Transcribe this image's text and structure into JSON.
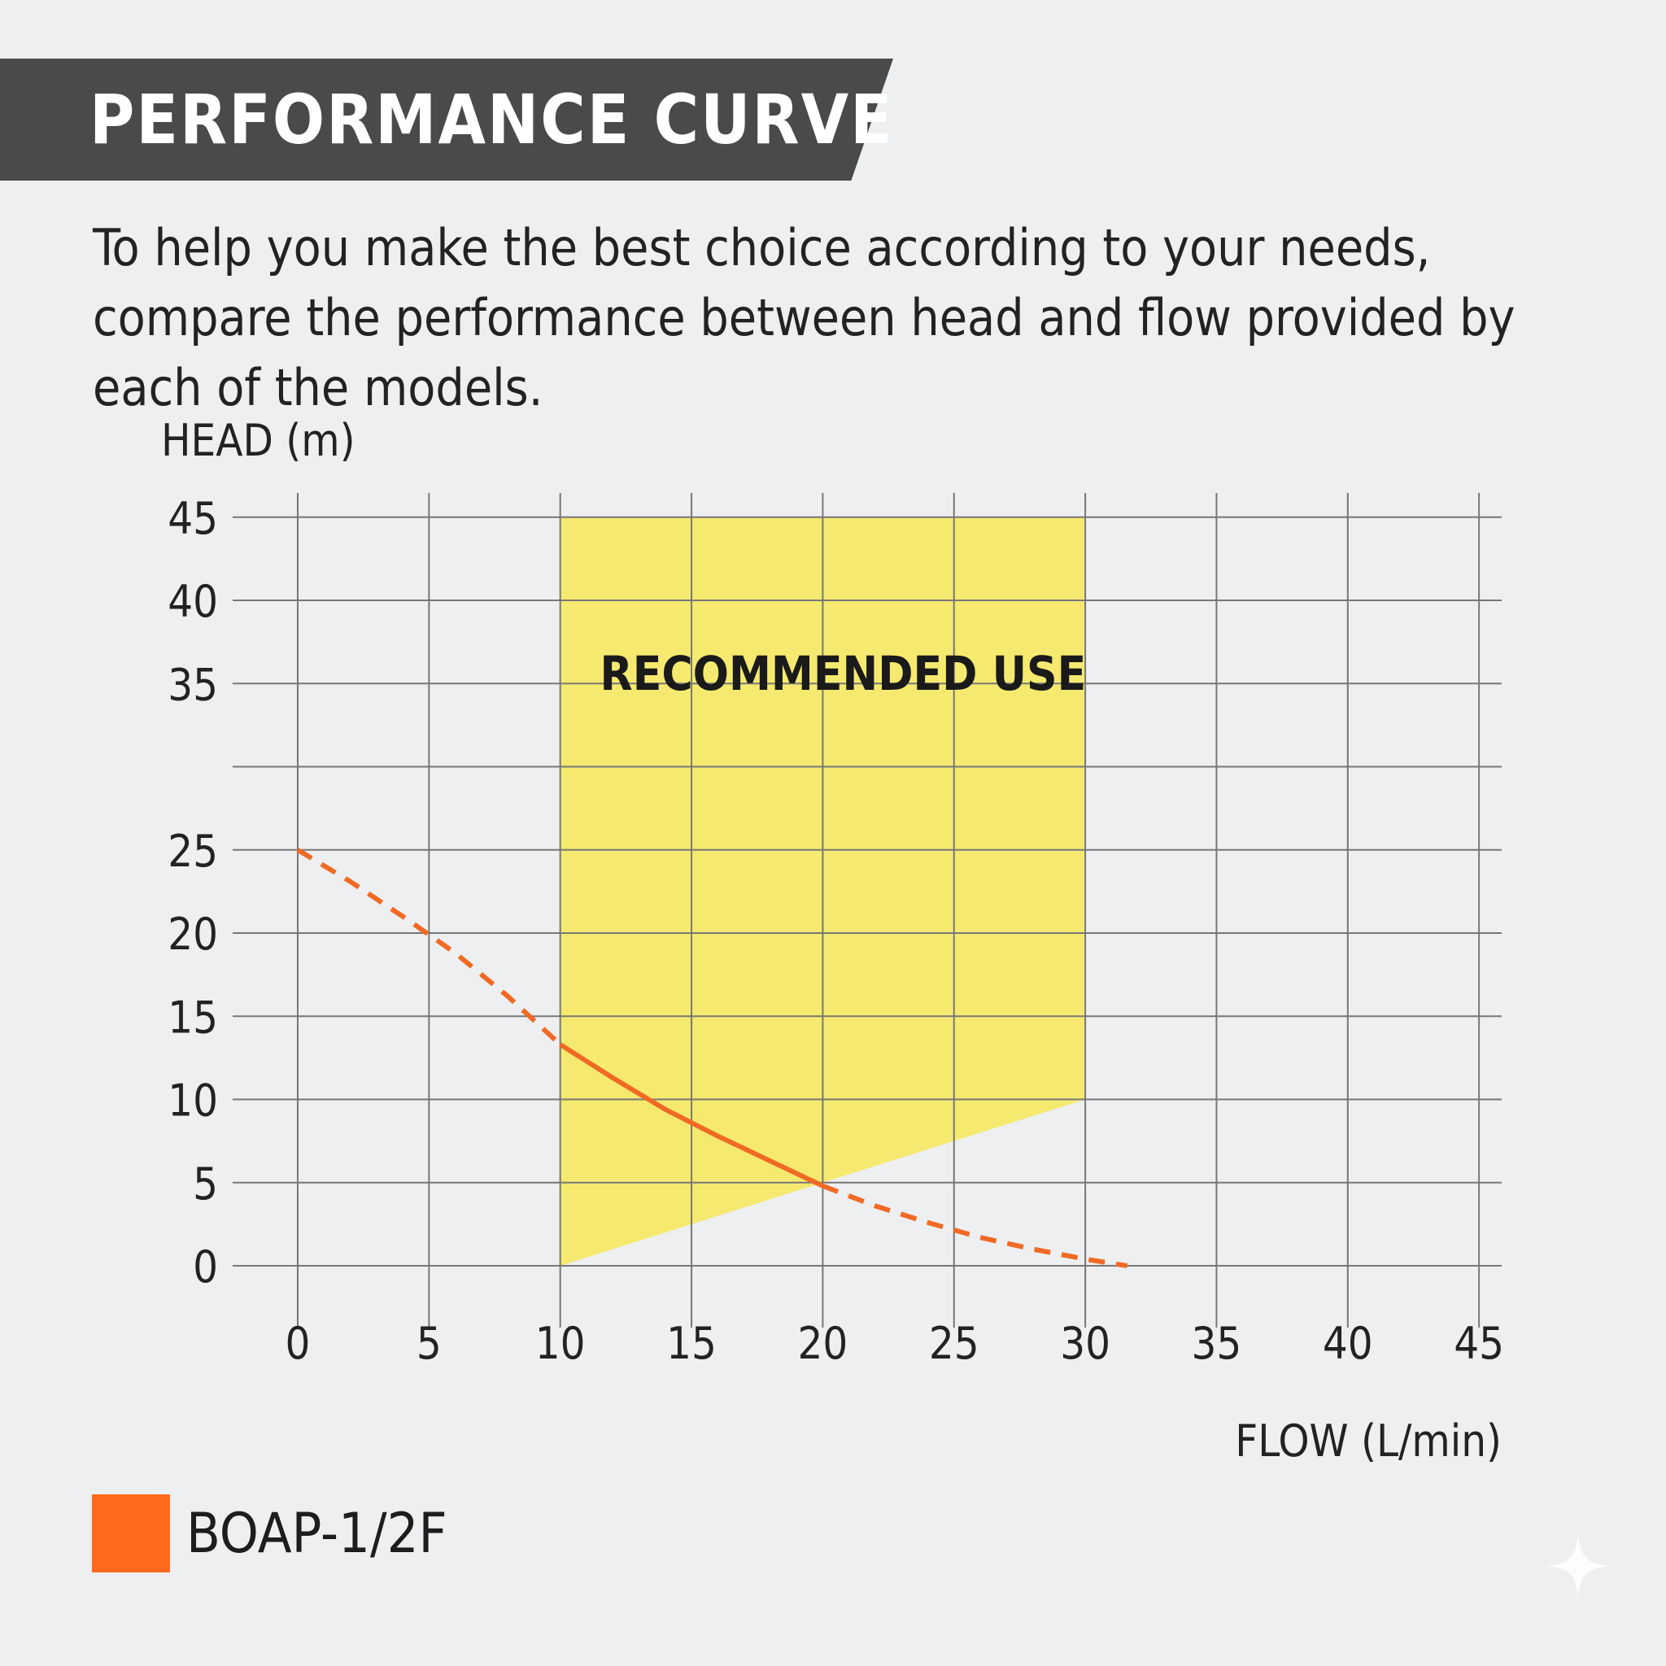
{
  "header": {
    "title": "PERFORMANCE CURVE"
  },
  "intro_text": "To help you make the best choice according to your needs, compare the performance between head and flow provided by each of the models.",
  "legend": [
    {
      "label": "BOAP-1/2F",
      "color": "#ff6a1f"
    }
  ],
  "colors": {
    "grid": "#777777",
    "recommended_fill": "#f5ea6f",
    "curve": "#f06a24"
  },
  "chart_data": {
    "type": "line",
    "xlabel": "FLOW (L/min)",
    "ylabel": "HEAD (m)",
    "xlim": [
      0,
      45
    ],
    "ylim": [
      0,
      45
    ],
    "x_ticks": [
      0,
      5,
      10,
      15,
      20,
      25,
      30,
      35,
      40,
      45
    ],
    "y_gridlines": [
      0,
      5,
      10,
      15,
      20,
      25,
      30,
      35,
      40,
      45
    ],
    "y_tick_labels": [
      {
        "value": 0,
        "label": "0"
      },
      {
        "value": 5,
        "label": "5"
      },
      {
        "value": 10,
        "label": "10"
      },
      {
        "value": 15,
        "label": "15"
      },
      {
        "value": 20,
        "label": "20"
      },
      {
        "value": 25,
        "label": "25"
      },
      {
        "value": 35,
        "label": "35"
      },
      {
        "value": 40,
        "label": "40"
      },
      {
        "value": 45,
        "label": "45"
      }
    ],
    "grid": true,
    "recommended_region": {
      "label": "RECOMMENDED USE",
      "polygon": [
        [
          10,
          0
        ],
        [
          10,
          45
        ],
        [
          30,
          45
        ],
        [
          30,
          10
        ]
      ]
    },
    "series": [
      {
        "name": "BOAP-1/2F",
        "color": "#f06a24",
        "points": [
          [
            0,
            25
          ],
          [
            2,
            23.1
          ],
          [
            4,
            21
          ],
          [
            6,
            18.8
          ],
          [
            8,
            16.2
          ],
          [
            10,
            13.3
          ],
          [
            12,
            11.3
          ],
          [
            14,
            9.4
          ],
          [
            16,
            7.8
          ],
          [
            18,
            6.3
          ],
          [
            20,
            4.8
          ],
          [
            22,
            3.6
          ],
          [
            24,
            2.6
          ],
          [
            26,
            1.7
          ],
          [
            28,
            1.0
          ],
          [
            30,
            0.4
          ],
          [
            31.6,
            0
          ]
        ],
        "solid_x_range": [
          10,
          20
        ]
      }
    ]
  }
}
